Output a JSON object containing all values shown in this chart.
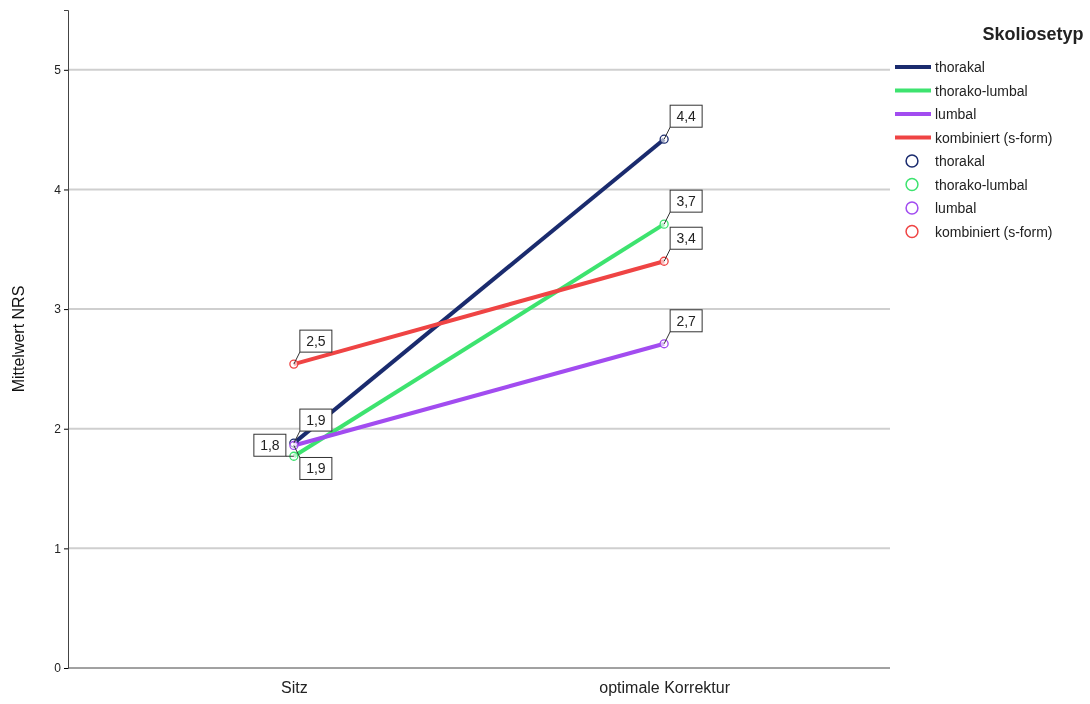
{
  "chart_data": {
    "type": "line",
    "ylabel": "Mittelwert NRS",
    "legend_title": "Skoliosetyp",
    "legend": "right",
    "grid": "y",
    "marker": "circle",
    "line_style": "solid",
    "categories": [
      "Sitz",
      "optimale Korrektur"
    ],
    "ylim": [
      0,
      5.5
    ],
    "yticks": [
      0,
      1,
      2,
      3,
      4,
      5
    ],
    "series": [
      {
        "name": "thorakal",
        "color": "#1a2b6e",
        "values": [
          1.88,
          4.42
        ],
        "value_labels": [
          "1,9",
          "4,4"
        ]
      },
      {
        "name": "thorako-lumbal",
        "color": "#3de36f",
        "values": [
          1.77,
          3.71
        ],
        "value_labels": [
          "1,8",
          "3,7"
        ]
      },
      {
        "name": "lumbal",
        "color": "#a24cf0",
        "values": [
          1.86,
          2.71
        ],
        "value_labels": [
          "1,9",
          "2,7"
        ]
      },
      {
        "name": "kombiniert (s-form)",
        "color": "#ef4444",
        "values": [
          2.54,
          3.4
        ],
        "value_labels": [
          "2,5",
          "3,4"
        ]
      }
    ]
  }
}
